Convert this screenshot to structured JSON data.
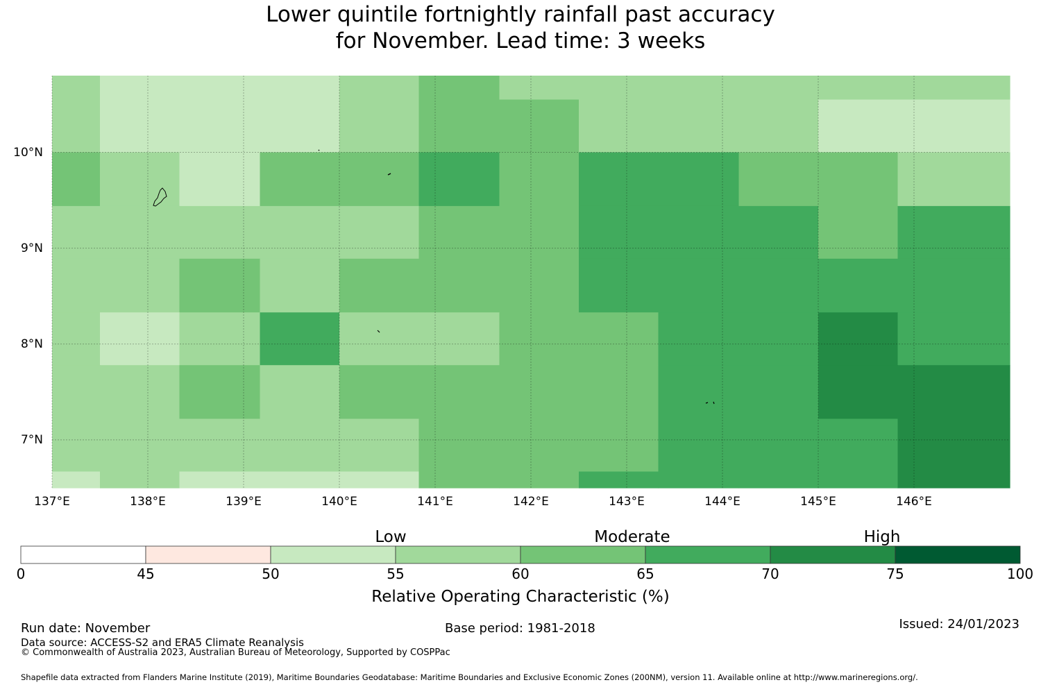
{
  "title": {
    "line1": "Lower quintile fortnightly rainfall past accuracy",
    "line2": "for November. Lead time: 3 weeks"
  },
  "map": {
    "lon_range": [
      137.0,
      147.0
    ],
    "lat_range": [
      6.5,
      10.8
    ],
    "lat_ticks": [
      {
        "value": 10,
        "label": "10°N"
      },
      {
        "value": 9,
        "label": "9°N"
      },
      {
        "value": 8,
        "label": "8°N"
      },
      {
        "value": 7,
        "label": "7°N"
      }
    ],
    "lon_ticks": [
      {
        "value": 137,
        "label": "137°E"
      },
      {
        "value": 138,
        "label": "138°E"
      },
      {
        "value": 139,
        "label": "139°E"
      },
      {
        "value": 140,
        "label": "140°E"
      },
      {
        "value": 141,
        "label": "141°E"
      },
      {
        "value": 142,
        "label": "142°E"
      },
      {
        "value": 143,
        "label": "143°E"
      },
      {
        "value": 144,
        "label": "144°E"
      },
      {
        "value": 145,
        "label": "145°E"
      },
      {
        "value": 146,
        "label": "146°E"
      }
    ],
    "grid_lon_edges": [
      137.0,
      137.5,
      138.33,
      139.17,
      140.0,
      140.83,
      141.67,
      142.5,
      143.33,
      144.17,
      145.0,
      145.83,
      147.0
    ],
    "grid_lat_edges": [
      10.8,
      10.55,
      10.0,
      9.44,
      8.89,
      8.33,
      7.78,
      7.22,
      6.67,
      6.5
    ],
    "grid_roc_bins": [
      [
        55,
        50,
        50,
        50,
        55,
        60,
        55,
        55,
        55,
        55,
        55,
        55
      ],
      [
        55,
        50,
        50,
        50,
        55,
        60,
        60,
        55,
        55,
        55,
        50,
        50
      ],
      [
        60,
        55,
        50,
        60,
        60,
        65,
        60,
        65,
        65,
        60,
        60,
        55
      ],
      [
        55,
        55,
        55,
        55,
        55,
        60,
        60,
        65,
        65,
        65,
        60,
        65
      ],
      [
        55,
        55,
        60,
        55,
        60,
        60,
        60,
        65,
        65,
        65,
        65,
        65
      ],
      [
        55,
        50,
        55,
        65,
        55,
        55,
        60,
        60,
        65,
        65,
        70,
        65
      ],
      [
        55,
        55,
        60,
        55,
        60,
        60,
        60,
        60,
        65,
        65,
        70,
        70
      ],
      [
        55,
        55,
        55,
        55,
        55,
        60,
        60,
        60,
        65,
        65,
        65,
        70
      ],
      [
        50,
        55,
        50,
        50,
        50,
        60,
        60,
        65,
        65,
        65,
        65,
        70
      ]
    ]
  },
  "colorbar": {
    "categories": [
      {
        "label": "Low",
        "center": 57.5
      },
      {
        "label": "Moderate",
        "center": 65.5
      },
      {
        "label": "High",
        "center": 72.5
      }
    ],
    "bins": [
      {
        "from": 0,
        "to": 45,
        "color": "#ffffff"
      },
      {
        "from": 45,
        "to": 50,
        "color": "#fee8e0"
      },
      {
        "from": 50,
        "to": 55,
        "color": "#c7e9c0"
      },
      {
        "from": 55,
        "to": 60,
        "color": "#a1d99b"
      },
      {
        "from": 60,
        "to": 65,
        "color": "#74c476"
      },
      {
        "from": 65,
        "to": 70,
        "color": "#41ab5d"
      },
      {
        "from": 70,
        "to": 75,
        "color": "#238b45"
      },
      {
        "from": 75,
        "to": 100,
        "color": "#005a32"
      }
    ],
    "ticks": [
      "0",
      "45",
      "50",
      "55",
      "60",
      "65",
      "70",
      "75",
      "100"
    ],
    "label": "Relative Operating Characteristic (%)"
  },
  "footer": {
    "run_date": "Run date: November",
    "base_period": "Base period: 1981-2018",
    "issued": "Issued: 24/01/2023",
    "data_source": "Data source: ACCESS-S2 and ERA5 Climate Reanalysis",
    "copyright": "© Commonwealth of Australia 2023, Australian Bureau of Meteorology, Supported by COSPPac",
    "shapefile": "Shapefile data extracted from Flanders Marine Institute (2019), Maritime Boundaries Geodatabase: Maritime Boundaries and Exclusive Economic Zones (200NM), version 11. Available online at http://www.marineregions.org/."
  }
}
